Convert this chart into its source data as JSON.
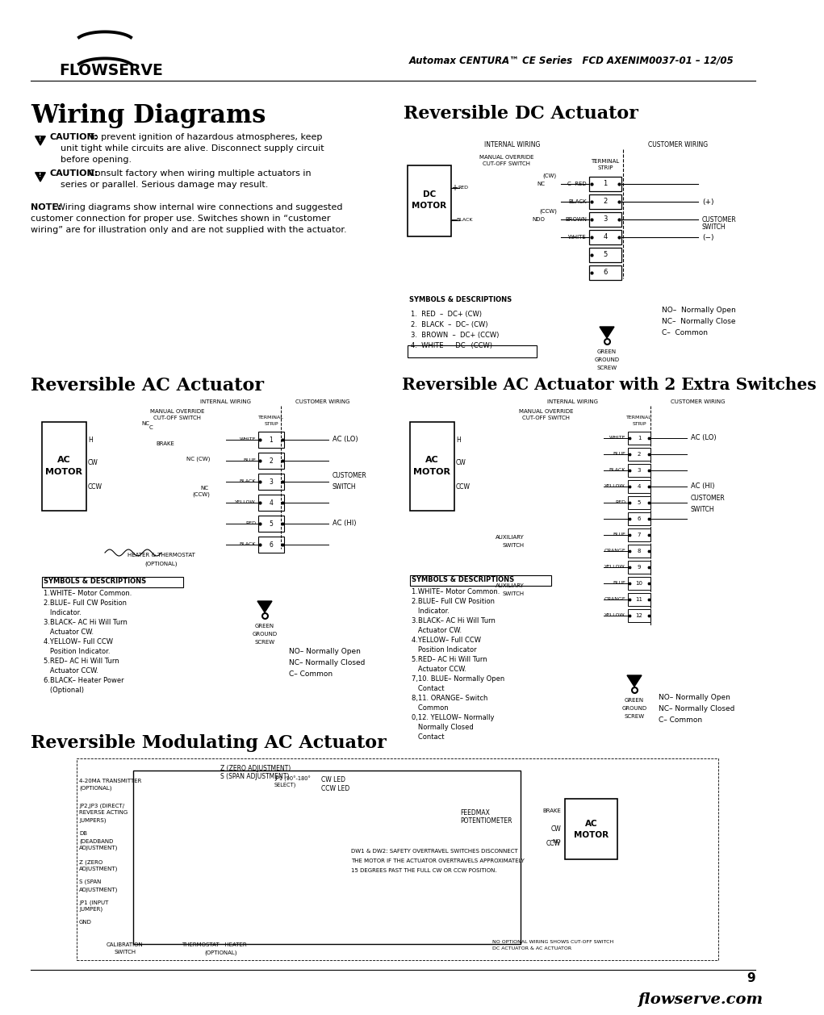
{
  "page_bg": "#ffffff",
  "header_text_right": "Automax CENTURA™ CE Series   FCD AXENIM0037-01 – 12/05",
  "footer_text_right": "flowserve.com",
  "footer_page_num": "9",
  "main_title": "Wiring Diagrams",
  "section_titles": [
    "Reversible DC Actuator",
    "Reversible AC Actuator",
    "Reversible AC Actuator with 2 Extra Switches",
    "Reversible Modulating AC Actuator"
  ]
}
